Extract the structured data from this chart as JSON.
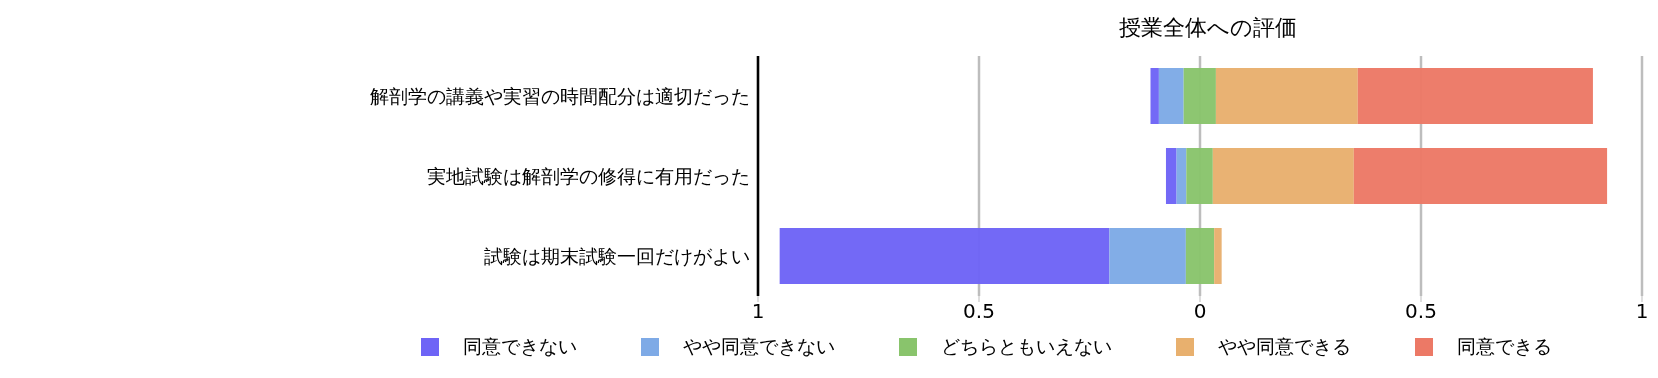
{
  "chart_data": {
    "type": "bar",
    "orientation": "horizontal",
    "title": "授業全体への評価",
    "categories": [
      "解剖学の講義や実習の時間配分は適切だった",
      "実地試験は解剖学の修得に有用だった",
      "試験は期末試験一回だけがよい"
    ],
    "series": [
      {
        "name": "同意できない",
        "color": "#6e64f6",
        "base": [
          -0.112,
          -0.077,
          -0.951
        ],
        "values": [
          0.019,
          0.024,
          0.746
        ]
      },
      {
        "name": "やや同意できない",
        "color": "#7eaae6",
        "base": [
          -0.093,
          -0.053,
          -0.205
        ],
        "values": [
          0.056,
          0.022,
          0.173
        ]
      },
      {
        "name": "どちらともいえない",
        "color": "#89c46c",
        "base": [
          -0.037,
          -0.031,
          -0.032
        ],
        "values": [
          0.073,
          0.06,
          0.064
        ]
      },
      {
        "name": "やや同意できる",
        "color": "#e8b06e",
        "base": [
          0.036,
          0.029,
          0.032
        ],
        "values": [
          0.321,
          0.319,
          0.017
        ]
      },
      {
        "name": "同意できる",
        "color": "#ec7966",
        "base": [
          0.357,
          0.348,
          null
        ],
        "values": [
          0.532,
          0.573,
          null
        ]
      }
    ],
    "xlim": [
      -1,
      1
    ],
    "xticks": [
      {
        "value": -1,
        "label": "1"
      },
      {
        "value": -0.5,
        "label": "0.5"
      },
      0,
      0.5,
      1
    ],
    "grid": "x",
    "legend": "bottom"
  }
}
